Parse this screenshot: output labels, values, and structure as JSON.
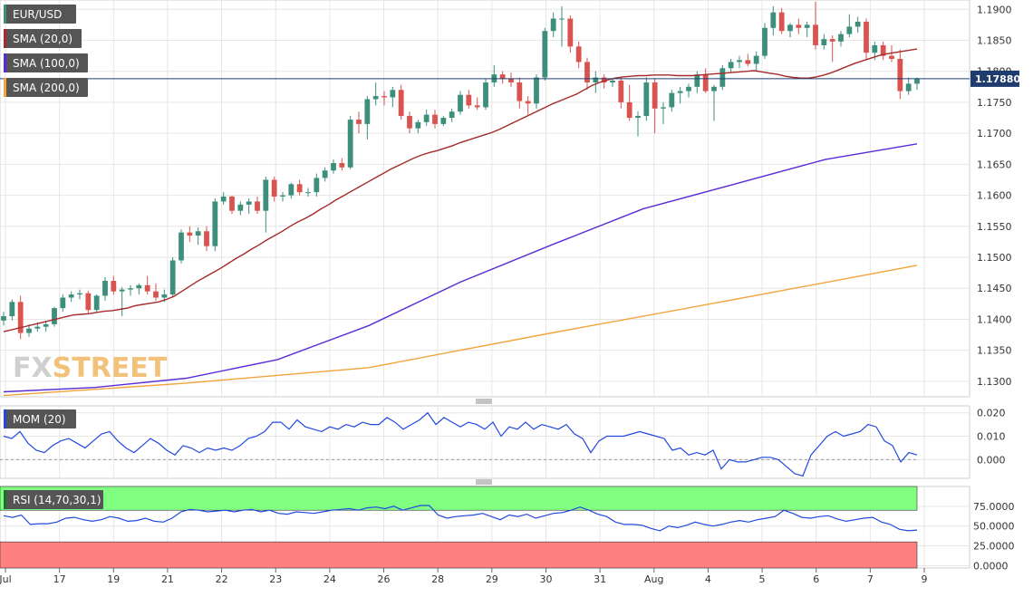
{
  "colors": {
    "up": "#3d8f7c",
    "down": "#d9534f",
    "sma20": "#a52a2a",
    "sma100": "#5a2bd6",
    "sma200": "#f2a33a",
    "mom": "#2148e0",
    "rsi": "#2148e0",
    "rsi_overbought": "#80ff80",
    "rsi_oversold": "#ff8080",
    "grid": "#e6e6e6",
    "label_bg": "#555555",
    "price_tag": "#1f3c6e"
  },
  "logo": "FXSTREET",
  "chart_data": [
    {
      "type": "candlestick",
      "symbol_label": "EUR/USD",
      "indicators": [
        {
          "label": "SMA (20,0)",
          "color": "#a52a2a"
        },
        {
          "label": "SMA (100,0)",
          "color": "#5a2bd6"
        },
        {
          "label": "SMA (200,0)",
          "color": "#f2a33a"
        }
      ],
      "current_price": 1.1788,
      "current_price_label": "1.17880",
      "ylim": [
        1.1275,
        1.1915
      ],
      "yticks": [
        "1.1300",
        "1.1350",
        "1.1400",
        "1.1450",
        "1.1500",
        "1.1550",
        "1.1600",
        "1.1650",
        "1.1700",
        "1.1750",
        "1.1800",
        "1.1850",
        "1.1900"
      ],
      "ytick_values": [
        1.13,
        1.135,
        1.14,
        1.145,
        1.15,
        1.155,
        1.16,
        1.165,
        1.17,
        1.175,
        1.18,
        1.185,
        1.19
      ],
      "xlabels": [
        "Jul",
        "17",
        "19",
        "21",
        "22",
        "23",
        "24",
        "26",
        "28",
        "29",
        "30",
        "31",
        "Aug",
        "4",
        "5",
        "6",
        "7",
        "9"
      ],
      "candles": [
        [
          1.1398,
          1.1412,
          1.139,
          1.1405
        ],
        [
          1.1405,
          1.1432,
          1.1398,
          1.1428
        ],
        [
          1.1428,
          1.1438,
          1.1368,
          1.1378
        ],
        [
          1.1378,
          1.1392,
          1.1372,
          1.1385
        ],
        [
          1.1385,
          1.1395,
          1.138,
          1.1388
        ],
        [
          1.1388,
          1.1398,
          1.138,
          1.1392
        ],
        [
          1.1392,
          1.142,
          1.1388,
          1.1418
        ],
        [
          1.1418,
          1.144,
          1.1412,
          1.1435
        ],
        [
          1.1435,
          1.1445,
          1.1428,
          1.144
        ],
        [
          1.144,
          1.1448,
          1.1432,
          1.1442
        ],
        [
          1.1442,
          1.1446,
          1.1408,
          1.1415
        ],
        [
          1.1415,
          1.144,
          1.1412,
          1.1438
        ],
        [
          1.1438,
          1.1468,
          1.143,
          1.1462
        ],
        [
          1.1462,
          1.147,
          1.144,
          1.1445
        ],
        [
          1.1445,
          1.1452,
          1.1405,
          1.1448
        ],
        [
          1.1448,
          1.1455,
          1.1438,
          1.145
        ],
        [
          1.145,
          1.1458,
          1.144,
          1.1455
        ],
        [
          1.1455,
          1.147,
          1.144,
          1.1445
        ],
        [
          1.1445,
          1.1458,
          1.143,
          1.1435
        ],
        [
          1.1435,
          1.1448,
          1.1428,
          1.144
        ],
        [
          1.144,
          1.15,
          1.1435,
          1.1495
        ],
        [
          1.1495,
          1.1545,
          1.149,
          1.154
        ],
        [
          1.154,
          1.155,
          1.1525,
          1.1535
        ],
        [
          1.1535,
          1.1548,
          1.152,
          1.1542
        ],
        [
          1.1542,
          1.155,
          1.151,
          1.1518
        ],
        [
          1.1518,
          1.1595,
          1.151,
          1.159
        ],
        [
          1.159,
          1.1605,
          1.1585,
          1.1598
        ],
        [
          1.1598,
          1.16,
          1.157,
          1.1575
        ],
        [
          1.1575,
          1.159,
          1.1568,
          1.1585
        ],
        [
          1.1585,
          1.1595,
          1.157,
          1.159
        ],
        [
          1.159,
          1.1598,
          1.157,
          1.1575
        ],
        [
          1.1575,
          1.163,
          1.154,
          1.1625
        ],
        [
          1.1625,
          1.163,
          1.159,
          1.1598
        ],
        [
          1.1598,
          1.1605,
          1.159,
          1.16
        ],
        [
          1.16,
          1.162,
          1.1595,
          1.1618
        ],
        [
          1.1618,
          1.1625,
          1.16,
          1.1605
        ],
        [
          1.1605,
          1.1612,
          1.1598,
          1.1605
        ],
        [
          1.1605,
          1.1635,
          1.1598,
          1.1628
        ],
        [
          1.1628,
          1.1645,
          1.1622,
          1.164
        ],
        [
          1.164,
          1.1658,
          1.1635,
          1.1652
        ],
        [
          1.1652,
          1.166,
          1.164,
          1.1645
        ],
        [
          1.1645,
          1.1728,
          1.1642,
          1.1722
        ],
        [
          1.1722,
          1.1735,
          1.17,
          1.1715
        ],
        [
          1.1715,
          1.176,
          1.169,
          1.1755
        ],
        [
          1.1755,
          1.1782,
          1.1745,
          1.176
        ],
        [
          1.176,
          1.1768,
          1.1745,
          1.1758
        ],
        [
          1.1758,
          1.1775,
          1.1742,
          1.177
        ],
        [
          1.177,
          1.1778,
          1.1722,
          1.1728
        ],
        [
          1.1728,
          1.1735,
          1.17,
          1.1708
        ],
        [
          1.1708,
          1.1722,
          1.17,
          1.1718
        ],
        [
          1.1718,
          1.1738,
          1.1712,
          1.173
        ],
        [
          1.173,
          1.1738,
          1.1708,
          1.1715
        ],
        [
          1.1715,
          1.1728,
          1.1712,
          1.1725
        ],
        [
          1.1725,
          1.174,
          1.1718,
          1.1735
        ],
        [
          1.1735,
          1.1768,
          1.173,
          1.1762
        ],
        [
          1.1762,
          1.177,
          1.174,
          1.1745
        ],
        [
          1.1745,
          1.1758,
          1.1738,
          1.1742
        ],
        [
          1.1742,
          1.1788,
          1.1738,
          1.1782
        ],
        [
          1.1782,
          1.181,
          1.1775,
          1.1795
        ],
        [
          1.1795,
          1.18,
          1.178,
          1.1788
        ],
        [
          1.1788,
          1.1798,
          1.1775,
          1.1782
        ],
        [
          1.1782,
          1.179,
          1.174,
          1.1752
        ],
        [
          1.1752,
          1.176,
          1.173,
          1.1748
        ],
        [
          1.1748,
          1.1795,
          1.174,
          1.179
        ],
        [
          1.179,
          1.187,
          1.1785,
          1.1865
        ],
        [
          1.1865,
          1.1895,
          1.1855,
          1.1885
        ],
        [
          1.1885,
          1.1905,
          1.184,
          1.1885
        ],
        [
          1.1885,
          1.189,
          1.183,
          1.184
        ],
        [
          1.184,
          1.1848,
          1.1805,
          1.1815
        ],
        [
          1.1815,
          1.1822,
          1.177,
          1.1782
        ],
        [
          1.1782,
          1.18,
          1.1765,
          1.179
        ],
        [
          1.179,
          1.1795,
          1.1772,
          1.1782
        ],
        [
          1.1782,
          1.1788,
          1.1775,
          1.1785
        ],
        [
          1.1785,
          1.179,
          1.174,
          1.175
        ],
        [
          1.175,
          1.1778,
          1.172,
          1.1725
        ],
        [
          1.1725,
          1.1735,
          1.1695,
          1.1728
        ],
        [
          1.1728,
          1.179,
          1.172,
          1.1782
        ],
        [
          1.1782,
          1.1788,
          1.17,
          1.174
        ],
        [
          1.174,
          1.175,
          1.1715,
          1.1742
        ],
        [
          1.1742,
          1.177,
          1.1735,
          1.1765
        ],
        [
          1.1765,
          1.1775,
          1.1748,
          1.1768
        ],
        [
          1.1768,
          1.178,
          1.1758,
          1.1775
        ],
        [
          1.1775,
          1.18,
          1.1765,
          1.1795
        ],
        [
          1.1795,
          1.1805,
          1.1765,
          1.1768
        ],
        [
          1.1768,
          1.1778,
          1.172,
          1.1775
        ],
        [
          1.1775,
          1.181,
          1.177,
          1.1805
        ],
        [
          1.1805,
          1.182,
          1.1798,
          1.1815
        ],
        [
          1.1815,
          1.1825,
          1.1805,
          1.1818
        ],
        [
          1.1818,
          1.1828,
          1.1808,
          1.1812
        ],
        [
          1.1812,
          1.1832,
          1.18,
          1.1825
        ],
        [
          1.1825,
          1.1878,
          1.182,
          1.187
        ],
        [
          1.187,
          1.1905,
          1.1858,
          1.1895
        ],
        [
          1.1895,
          1.1902,
          1.186,
          1.1865
        ],
        [
          1.1865,
          1.1878,
          1.1855,
          1.1875
        ],
        [
          1.1875,
          1.1885,
          1.186,
          1.187
        ],
        [
          1.187,
          1.188,
          1.1855,
          1.1875
        ],
        [
          1.1875,
          1.1912,
          1.1835,
          1.1842
        ],
        [
          1.1842,
          1.186,
          1.1835,
          1.1852
        ],
        [
          1.1852,
          1.1858,
          1.1815,
          1.1848
        ],
        [
          1.1848,
          1.1865,
          1.184,
          1.186
        ],
        [
          1.186,
          1.1892,
          1.1855,
          1.1872
        ],
        [
          1.1872,
          1.1888,
          1.1862,
          1.188
        ],
        [
          1.188,
          1.1885,
          1.182,
          1.183
        ],
        [
          1.183,
          1.1848,
          1.1818,
          1.1842
        ],
        [
          1.1842,
          1.1848,
          1.1818,
          1.1825
        ],
        [
          1.1825,
          1.1842,
          1.1815,
          1.182
        ],
        [
          1.182,
          1.1835,
          1.1755,
          1.1768
        ],
        [
          1.1768,
          1.179,
          1.1762,
          1.178
        ],
        [
          1.178,
          1.179,
          1.177,
          1.1788
        ]
      ],
      "sma20": [
        1.138,
        1.1383,
        1.1386,
        1.1389,
        1.1392,
        1.1395,
        1.1398,
        1.1401,
        1.1404,
        1.1407,
        1.1408,
        1.1409,
        1.1411,
        1.1413,
        1.1414,
        1.1416,
        1.1418,
        1.1422,
        1.1424,
        1.1426,
        1.1428,
        1.1432,
        1.1437,
        1.1445,
        1.1453,
        1.1461,
        1.1468,
        1.1475,
        1.1482,
        1.149,
        1.1498,
        1.1505,
        1.1513,
        1.152,
        1.1528,
        1.1535,
        1.1542,
        1.155,
        1.1557,
        1.1563,
        1.157,
        1.1578,
        1.1585,
        1.1593,
        1.16,
        1.1607,
        1.1614,
        1.1621,
        1.1628,
        1.1635,
        1.1642,
        1.1648,
        1.1654,
        1.166,
        1.1665,
        1.1669,
        1.1672,
        1.1676,
        1.168,
        1.1685,
        1.1689,
        1.1693,
        1.1697,
        1.1701,
        1.1706,
        1.1712,
        1.1718,
        1.1724,
        1.173,
        1.1736,
        1.1742,
        1.1748,
        1.1753,
        1.1758,
        1.1763,
        1.177,
        1.1777,
        1.1782,
        1.1786,
        1.1789,
        1.1791,
        1.1792,
        1.1793,
        1.1793,
        1.1794,
        1.1794,
        1.1794,
        1.1793,
        1.1793,
        1.1793,
        1.1794,
        1.1795,
        1.1796,
        1.1797,
        1.1798,
        1.1799,
        1.18,
        1.1801,
        1.1799,
        1.1797,
        1.1795,
        1.1792,
        1.179,
        1.1789,
        1.1789,
        1.1791,
        1.1794,
        1.1798,
        1.1803,
        1.1808,
        1.1813,
        1.1817,
        1.1821,
        1.1825,
        1.1828,
        1.183,
        1.1832,
        1.1834,
        1.1836
      ],
      "sma100": [
        [
          0,
          1.1283
        ],
        [
          0.1,
          1.129
        ],
        [
          0.2,
          1.1305
        ],
        [
          0.3,
          1.1335
        ],
        [
          0.4,
          1.139
        ],
        [
          0.5,
          1.146
        ],
        [
          0.6,
          1.152
        ],
        [
          0.7,
          1.1578
        ],
        [
          0.8,
          1.1618
        ],
        [
          0.9,
          1.1658
        ],
        [
          1,
          1.1683
        ]
      ],
      "sma200": [
        [
          0,
          1.1277
        ],
        [
          0.2,
          1.1297
        ],
        [
          0.4,
          1.1322
        ],
        [
          0.6,
          1.1378
        ],
        [
          0.8,
          1.1432
        ],
        [
          1,
          1.1487
        ]
      ]
    },
    {
      "type": "line",
      "label": "MOM (20)",
      "yticks": [
        "0.020",
        "0.010",
        "0.000"
      ],
      "ytick_values": [
        0.02,
        0.01,
        0.0
      ],
      "ylim": [
        -0.008,
        0.023
      ],
      "values": [
        0.01,
        0.009,
        0.012,
        0.007,
        0.004,
        0.003,
        0.006,
        0.008,
        0.009,
        0.007,
        0.005,
        0.008,
        0.011,
        0.012,
        0.008,
        0.005,
        0.003,
        0.006,
        0.009,
        0.007,
        0.004,
        0.002,
        0.006,
        0.005,
        0.003,
        0.005,
        0.004,
        0.005,
        0.004,
        0.006,
        0.009,
        0.01,
        0.012,
        0.016,
        0.016,
        0.013,
        0.017,
        0.014,
        0.013,
        0.012,
        0.014,
        0.013,
        0.015,
        0.014,
        0.016,
        0.015,
        0.015,
        0.018,
        0.016,
        0.013,
        0.015,
        0.017,
        0.02,
        0.015,
        0.018,
        0.016,
        0.014,
        0.016,
        0.015,
        0.013,
        0.016,
        0.01,
        0.014,
        0.013,
        0.016,
        0.013,
        0.015,
        0.014,
        0.013,
        0.015,
        0.011,
        0.009,
        0.003,
        0.008,
        0.01,
        0.01,
        0.01,
        0.011,
        0.012,
        0.011,
        0.01,
        0.009,
        0.004,
        0.005,
        0.002,
        0.003,
        0.002,
        0.004,
        -0.004,
        0.0,
        -0.001,
        -0.001,
        0.0,
        0.001,
        0.001,
        0.0,
        -0.003,
        -0.006,
        -0.007,
        0.002,
        0.006,
        0.01,
        0.012,
        0.01,
        0.011,
        0.012,
        0.015,
        0.014,
        0.008,
        0.006,
        -0.001,
        0.003,
        0.002
      ],
      "dashed_level": 0.0
    },
    {
      "type": "line",
      "label": "RSI (14,70,30,1)",
      "yticks": [
        "75.0000",
        "50.0000",
        "25.0000",
        "0.0000"
      ],
      "ytick_values": [
        75,
        50,
        25,
        0
      ],
      "ylim": [
        -3,
        100
      ],
      "overbought": 70,
      "oversold": 30,
      "values": [
        63,
        61,
        64,
        52,
        53,
        53,
        55,
        60,
        61,
        58,
        56,
        58,
        62,
        60,
        56,
        57,
        60,
        56,
        55,
        60,
        68,
        71,
        70,
        68,
        69,
        70,
        68,
        70,
        71,
        68,
        70,
        66,
        65,
        68,
        67,
        66,
        68,
        70,
        71,
        72,
        70,
        73,
        74,
        72,
        75,
        70,
        73,
        76,
        76,
        64,
        60,
        62,
        63,
        64,
        66,
        62,
        58,
        64,
        62,
        65,
        60,
        63,
        66,
        67,
        70,
        74,
        70,
        65,
        62,
        55,
        52,
        52,
        51,
        47,
        44,
        50,
        48,
        51,
        55,
        52,
        50,
        52,
        55,
        57,
        55,
        58,
        60,
        62,
        70,
        66,
        61,
        60,
        62,
        63,
        59,
        56,
        58,
        60,
        61,
        55,
        52,
        46,
        44,
        45
      ]
    }
  ]
}
